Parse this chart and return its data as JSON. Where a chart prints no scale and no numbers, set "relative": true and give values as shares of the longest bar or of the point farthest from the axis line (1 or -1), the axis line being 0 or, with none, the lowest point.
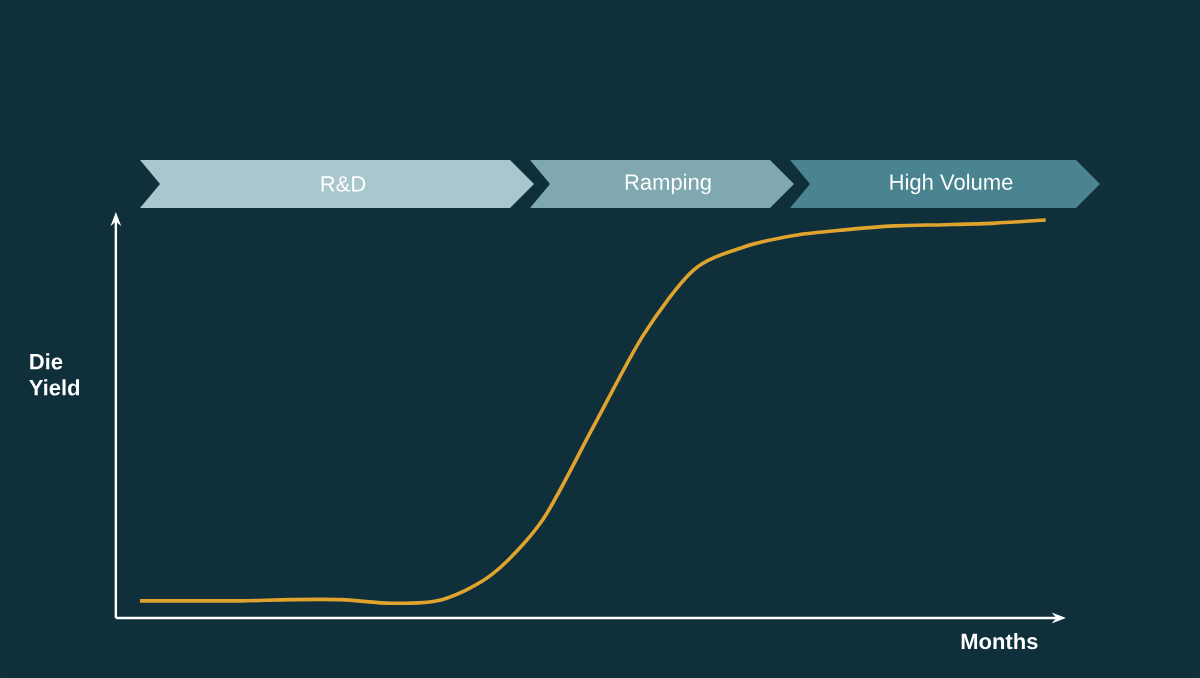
{
  "chart_data": {
    "type": "line",
    "relative": true,
    "xlabel": "Months",
    "ylabel": "Die Yield",
    "annotations": [
      "R&D",
      "Ramping",
      "High Volume"
    ],
    "categories": [
      null,
      null,
      null,
      null,
      null,
      null,
      null,
      null,
      null,
      null,
      null,
      null,
      null,
      null,
      null,
      null,
      null,
      null,
      null
    ],
    "series": [
      {
        "color": "#e0a32e",
        "values": [
          0.043,
          0.043,
          0.043,
          0.046,
          0.046,
          0.037,
          0.046,
          0.11,
          0.246,
          0.478,
          0.71,
          0.874,
          0.932,
          0.961,
          0.975,
          0.985,
          0.988,
          0.992,
          1
        ]
      }
    ],
    "marker": "none",
    "line_style": "solid"
  }
}
